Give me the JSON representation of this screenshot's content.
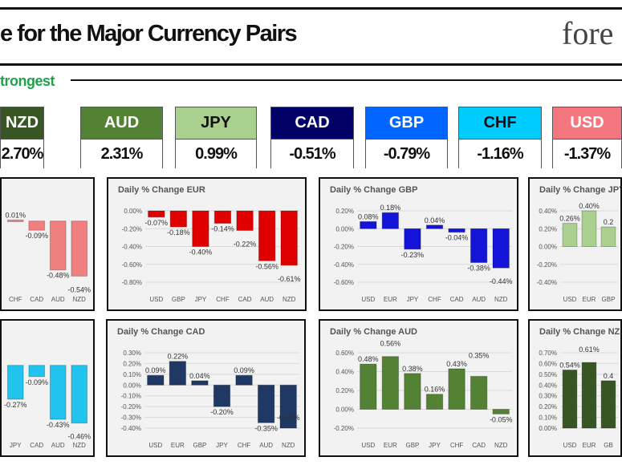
{
  "header": {
    "title": "e for the Major Currency Pairs",
    "logo_text": "fore"
  },
  "section_label": "trongest",
  "currencies": [
    {
      "code": "NZD",
      "change": "2.70%",
      "color": "#375623",
      "text_color": "#ffffff"
    },
    {
      "code": "AUD",
      "change": "2.31%",
      "color": "#548235",
      "text_color": "#ffffff"
    },
    {
      "code": "JPY",
      "change": "0.99%",
      "color": "#a9d08e",
      "text_color": "#111111"
    },
    {
      "code": "CAD",
      "change": "-0.51%",
      "color": "#000066",
      "text_color": "#ffffff"
    },
    {
      "code": "GBP",
      "change": "-0.79%",
      "color": "#0066ff",
      "text_color": "#ffffff"
    },
    {
      "code": "CHF",
      "change": "-1.16%",
      "color": "#00ccff",
      "text_color": "#111111"
    },
    {
      "code": "USD",
      "change": "-1.37%",
      "color": "#f4777f",
      "text_color": "#ffffff"
    }
  ],
  "chart_data": [
    {
      "type": "bar",
      "title": "",
      "categories": [
        "CHF",
        "CAD",
        "AUD",
        "NZD"
      ],
      "values": [
        0.01,
        -0.09,
        -0.48,
        -0.54
      ],
      "labels": [
        "0.01%",
        "-0.09%",
        "-0.48%",
        "-0.54%"
      ],
      "ylim": [
        -0.6,
        0.1
      ],
      "ticks": [],
      "color": "#f08080"
    },
    {
      "type": "bar",
      "title": "Daily % Change EUR",
      "categories": [
        "USD",
        "GBP",
        "JPY",
        "CHF",
        "CAD",
        "AUD",
        "NZD"
      ],
      "values": [
        -0.07,
        -0.18,
        -0.4,
        -0.14,
        -0.22,
        -0.56,
        -0.61
      ],
      "labels": [
        "-0.07%",
        "-0.18%",
        "-0.40%",
        "-0.14%",
        "-0.22%",
        "-0.56%",
        "-0.61%"
      ],
      "ylim": [
        -0.8,
        0
      ],
      "ticks": [
        "0.00%",
        "-0.20%",
        "-0.40%",
        "-0.60%",
        "-0.80%"
      ],
      "color": "#e00000"
    },
    {
      "type": "bar",
      "title": "Daily % Change GBP",
      "categories": [
        "USD",
        "EUR",
        "JPY",
        "CHF",
        "CAD",
        "AUD",
        "NZD"
      ],
      "values": [
        0.08,
        0.18,
        -0.23,
        0.04,
        -0.04,
        -0.38,
        -0.44
      ],
      "labels": [
        "0.08%",
        "0.18%",
        "-0.23%",
        "0.04%",
        "-0.04%",
        "-0.38%",
        "-0.44%"
      ],
      "ylim": [
        -0.6,
        0.2
      ],
      "ticks": [
        "0.20%",
        "0.00%",
        "-0.20%",
        "-0.40%",
        "-0.60%"
      ],
      "color": "#1414d8"
    },
    {
      "type": "bar",
      "title": "Daily % Change JPY",
      "categories": [
        "USD",
        "EUR",
        "GBP"
      ],
      "values": [
        0.26,
        0.4,
        0.22
      ],
      "labels": [
        "0.26%",
        "0.40%",
        "0.2"
      ],
      "ylim": [
        -0.4,
        0.4
      ],
      "ticks": [
        "0.40%",
        "0.20%",
        "0.00%",
        "-0.20%",
        "-0.40%"
      ],
      "color": "#a9d08e"
    },
    {
      "type": "bar",
      "title": "",
      "categories": [
        "JPY",
        "CAD",
        "AUD",
        "NZD"
      ],
      "values": [
        -0.27,
        -0.09,
        -0.43,
        -0.46
      ],
      "labels": [
        "-0.27%",
        "-0.09%",
        "-0.43%",
        "-0.46%"
      ],
      "ylim": [
        -0.5,
        0.1
      ],
      "ticks": [],
      "color": "#22c4ee"
    },
    {
      "type": "bar",
      "title": "Daily % Change CAD",
      "categories": [
        "USD",
        "EUR",
        "GBP",
        "JPY",
        "CHF",
        "AUD",
        "NZD"
      ],
      "values": [
        0.09,
        0.22,
        0.04,
        -0.2,
        0.09,
        -0.35,
        -0.4
      ],
      "labels": [
        "0.09%",
        "0.22%",
        "0.04%",
        "-0.20%",
        "0.09%",
        "-0.35%",
        "-0.40%"
      ],
      "ylim": [
        -0.4,
        0.3
      ],
      "ticks": [
        "0.30%",
        "0.20%",
        "0.10%",
        "0.00%",
        "-0.10%",
        "-0.20%",
        "-0.30%",
        "-0.40%"
      ],
      "color": "#1f3864"
    },
    {
      "type": "bar",
      "title": "Daily % Change AUD",
      "categories": [
        "USD",
        "EUR",
        "GBP",
        "JPY",
        "CHF",
        "CAD",
        "NZD"
      ],
      "values": [
        0.48,
        0.56,
        0.38,
        0.16,
        0.43,
        0.35,
        -0.05
      ],
      "labels": [
        "0.48%",
        "0.56%",
        "0.38%",
        "0.16%",
        "0.43%",
        "0.35%",
        "-0.05%"
      ],
      "ylim": [
        -0.2,
        0.6
      ],
      "ticks": [
        "0.60%",
        "0.40%",
        "0.20%",
        "0.00%",
        "-0.20%"
      ],
      "color": "#548235"
    },
    {
      "type": "bar",
      "title": "Daily % Change NZ",
      "categories": [
        "USD",
        "EUR",
        "GB"
      ],
      "values": [
        0.54,
        0.61,
        0.44
      ],
      "labels": [
        "0.54%",
        "0.61%",
        "0.4"
      ],
      "ylim": [
        0,
        0.7
      ],
      "ticks": [
        "0.70%",
        "0.60%",
        "0.50%",
        "0.40%",
        "0.30%",
        "0.20%",
        "0.10%",
        "0.00%"
      ],
      "color": "#375623"
    }
  ]
}
